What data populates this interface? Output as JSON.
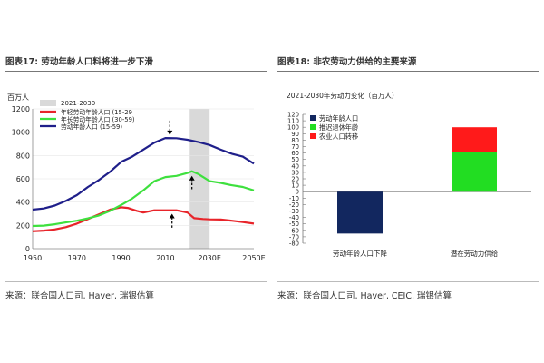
{
  "left": {
    "title": "图表17: 劳动年龄人口料将进一步下滑",
    "source": "来源：联合国人口司, Haver, 瑞银估算"
  },
  "right": {
    "title": "图表18: 非农劳动力供给的主要来源",
    "source": "来源：联合国人口司, Haver, CEIC, 瑞银估算"
  },
  "chart_data": [
    {
      "type": "line",
      "ylabel": "百万人",
      "ylim": [
        0,
        1200
      ],
      "yticks": [
        0,
        200,
        400,
        600,
        800,
        1000,
        1200
      ],
      "xlim": [
        1950,
        2050
      ],
      "xticks": [
        "1950",
        "1970",
        "1990",
        "2010",
        "2030E",
        "2050E"
      ],
      "xtick_values": [
        1950,
        1970,
        1990,
        2010,
        2030,
        2050
      ],
      "shaded_region": {
        "label": "2021-2030",
        "from": 2021,
        "to": 2030,
        "color": "#d9d9d9"
      },
      "legend_placement": "top-left",
      "colors": {
        "youth": "#e8242a",
        "older": "#3ee03e",
        "total": "#1f1f8a"
      },
      "series": [
        {
          "name": "年轻劳动年龄人口 (15-29",
          "key": "youth",
          "points": [
            [
              1950,
              150
            ],
            [
              1955,
              155
            ],
            [
              1960,
              165
            ],
            [
              1965,
              185
            ],
            [
              1970,
              215
            ],
            [
              1975,
              255
            ],
            [
              1980,
              295
            ],
            [
              1985,
              335
            ],
            [
              1990,
              355
            ],
            [
              1993,
              350
            ],
            [
              1997,
              325
            ],
            [
              2000,
              310
            ],
            [
              2005,
              330
            ],
            [
              2010,
              330
            ],
            [
              2015,
              330
            ],
            [
              2020,
              310
            ],
            [
              2023,
              262
            ],
            [
              2027,
              255
            ],
            [
              2030,
              252
            ],
            [
              2035,
              250
            ],
            [
              2040,
              240
            ],
            [
              2045,
              228
            ],
            [
              2050,
              215
            ]
          ]
        },
        {
          "name": "年长劳动年龄人口 (30-59)",
          "key": "older",
          "points": [
            [
              1950,
              195
            ],
            [
              1955,
              198
            ],
            [
              1960,
              210
            ],
            [
              1965,
              225
            ],
            [
              1970,
              240
            ],
            [
              1975,
              260
            ],
            [
              1980,
              285
            ],
            [
              1985,
              325
            ],
            [
              1990,
              375
            ],
            [
              1995,
              430
            ],
            [
              2000,
              500
            ],
            [
              2005,
              580
            ],
            [
              2010,
              615
            ],
            [
              2015,
              625
            ],
            [
              2020,
              650
            ],
            [
              2022,
              665
            ],
            [
              2025,
              640
            ],
            [
              2030,
              580
            ],
            [
              2035,
              565
            ],
            [
              2040,
              545
            ],
            [
              2045,
              530
            ],
            [
              2050,
              500
            ]
          ]
        },
        {
          "name": "劳动年龄人口 (15-59)",
          "key": "total",
          "points": [
            [
              1950,
              335
            ],
            [
              1955,
              345
            ],
            [
              1960,
              370
            ],
            [
              1965,
              410
            ],
            [
              1970,
              460
            ],
            [
              1975,
              530
            ],
            [
              1980,
              590
            ],
            [
              1985,
              660
            ],
            [
              1990,
              745
            ],
            [
              1995,
              790
            ],
            [
              2000,
              850
            ],
            [
              2005,
              910
            ],
            [
              2010,
              950
            ],
            [
              2015,
              948
            ],
            [
              2020,
              935
            ],
            [
              2025,
              915
            ],
            [
              2030,
              890
            ],
            [
              2035,
              850
            ],
            [
              2040,
              815
            ],
            [
              2045,
              790
            ],
            [
              2050,
              730
            ]
          ]
        }
      ]
    },
    {
      "type": "bar",
      "title": "2021-2030年劳动力变化（百万人）",
      "ylim": [
        -80,
        120
      ],
      "yticks": [
        -80,
        -70,
        -60,
        -50,
        -40,
        -30,
        -20,
        -10,
        0,
        10,
        20,
        30,
        40,
        50,
        60,
        70,
        80,
        90,
        100,
        110,
        120
      ],
      "categories": [
        "劳动年龄人口下降",
        "潜在劳动力供给"
      ],
      "legend_placement": "top-left",
      "series": [
        {
          "name": "劳动年龄人口",
          "color": "#12275f",
          "values": [
            -65,
            0
          ]
        },
        {
          "name": "推迟退休年龄",
          "color": "#22dd22",
          "values": [
            0,
            61
          ]
        },
        {
          "name": "农业人口转移",
          "color": "#ff1a1a",
          "values": [
            0,
            39
          ]
        }
      ]
    }
  ]
}
